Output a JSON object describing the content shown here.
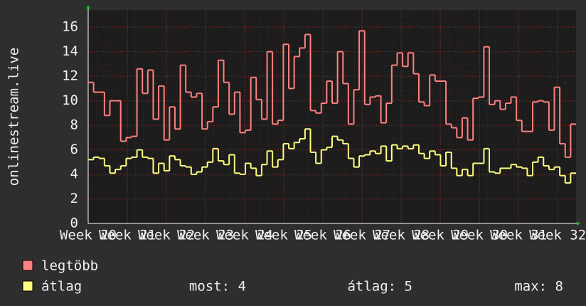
{
  "chart_data": {
    "type": "step",
    "y_label": "onlinestream.live",
    "ylim": [
      0,
      17.4
    ],
    "yticks": [
      0,
      2,
      4,
      6,
      8,
      10,
      12,
      14,
      16
    ],
    "xlim": [
      20,
      32.47
    ],
    "xticks": [
      {
        "value": 20,
        "label": "Week 20"
      },
      {
        "value": 21,
        "label": "Week 21"
      },
      {
        "value": 22,
        "label": "Week 22"
      },
      {
        "value": 23,
        "label": "Week 23"
      },
      {
        "value": 24,
        "label": "Week 24"
      },
      {
        "value": 25,
        "label": "Week 25"
      },
      {
        "value": 26,
        "label": "Week 26"
      },
      {
        "value": 27,
        "label": "Week 27"
      },
      {
        "value": 28,
        "label": "Week 28"
      },
      {
        "value": 29,
        "label": "Week 29"
      },
      {
        "value": 30,
        "label": "Week 30"
      },
      {
        "value": 31,
        "label": "Week 31"
      },
      {
        "value": 32,
        "label": "Week 32"
      }
    ],
    "grid": true,
    "series": [
      {
        "name": "legtöbb",
        "color": "#ff8080",
        "values": [
          11.5,
          10.7,
          10.7,
          8.8,
          10,
          10,
          6.7,
          7,
          7.1,
          12.6,
          10.6,
          12.5,
          8.5,
          11.2,
          6.8,
          9.5,
          7.7,
          12.9,
          10.7,
          10.3,
          10.6,
          7.7,
          8.3,
          9.5,
          13.3,
          11.5,
          8.9,
          10.7,
          7.4,
          7.6,
          11.9,
          10.1,
          8.5,
          14,
          8.1,
          8.4,
          14.6,
          11,
          13.6,
          14.3,
          15.4,
          9.2,
          9,
          9.8,
          11.6,
          9.8,
          14,
          11.4,
          8.1,
          10.9,
          15.7,
          9.7,
          10.3,
          10.4,
          8.2,
          9.8,
          12.9,
          13.9,
          12.8,
          13.9,
          12.2,
          9.9,
          9.6,
          12.1,
          11.6,
          11.6,
          8.1,
          7.8,
          7,
          8.6,
          6.8,
          10.2,
          10.3,
          14.4,
          9.7,
          10,
          9.3,
          9.8,
          10.3,
          8.4,
          7.5,
          7.5,
          9.9,
          10,
          9.9,
          7.6,
          11.1,
          6.5,
          5.4,
          8.1
        ]
      },
      {
        "name": "átlag",
        "color": "#ffff80",
        "values": [
          5.2,
          5.4,
          5.3,
          4.7,
          4.1,
          4.4,
          4.7,
          5.3,
          5.4,
          6,
          5.4,
          5.3,
          4.1,
          4.9,
          4.3,
          5.5,
          5.2,
          4.7,
          4.6,
          4,
          4.2,
          4.6,
          5,
          6.1,
          5.1,
          4.8,
          5.6,
          4.1,
          4,
          4.9,
          4.5,
          3.9,
          4.8,
          5.9,
          4.6,
          5.2,
          6.5,
          6.1,
          6.6,
          6.9,
          7.7,
          5.8,
          4.9,
          6,
          6.2,
          7.1,
          6.8,
          6.5,
          5.3,
          4.6,
          5.5,
          5.6,
          5.9,
          5.7,
          6.3,
          5.1,
          6.4,
          6.1,
          6.3,
          6.1,
          6.4,
          5.7,
          5.3,
          5.9,
          5.6,
          4.7,
          5.8,
          4.5,
          3.9,
          4.4,
          3.9,
          4.9,
          4.9,
          6.1,
          4.2,
          4.1,
          4.5,
          4.5,
          4.8,
          4.6,
          4.5,
          3.9,
          5,
          5.4,
          4.7,
          4.4,
          4.6,
          3.9,
          3.3,
          4.1
        ]
      }
    ],
    "stats": [
      "most: 4",
      "átlag: 5",
      "max: 8"
    ]
  }
}
